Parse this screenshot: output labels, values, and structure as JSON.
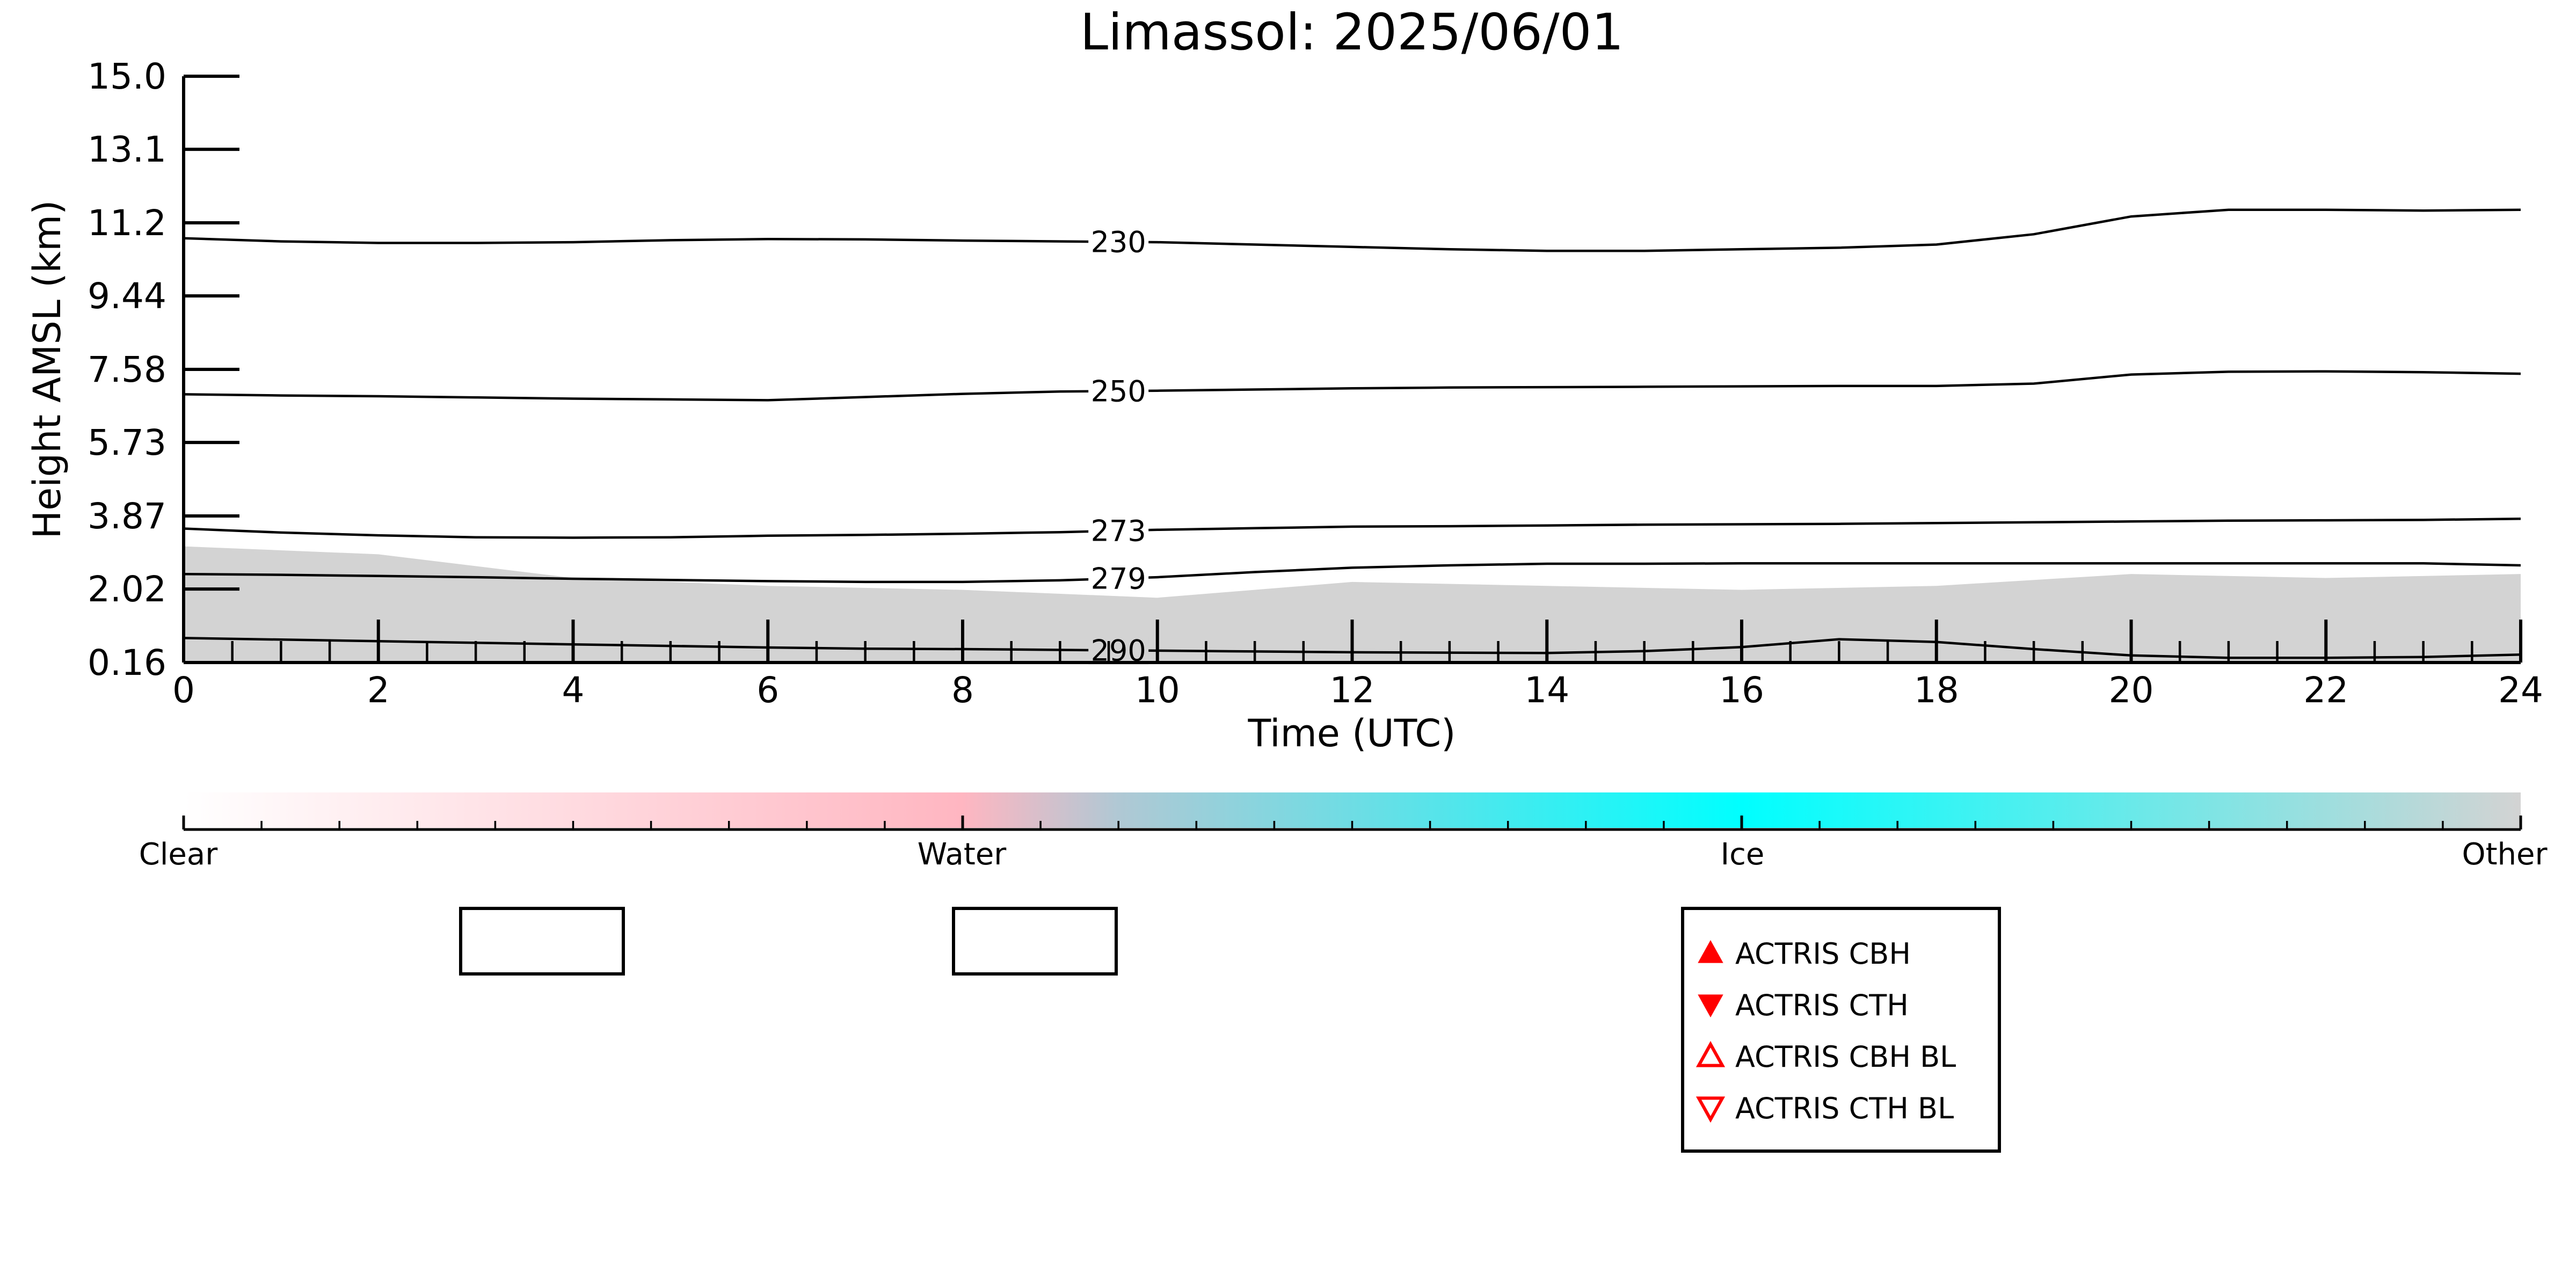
{
  "chart_data": {
    "type": "line",
    "title": "Limassol: 2025/06/01",
    "xlabel": "Time (UTC)",
    "ylabel": "Height AMSL (km)",
    "xlim": [
      0,
      24
    ],
    "ylim": [
      0.16,
      15.0
    ],
    "x_ticks": [
      "0",
      "2",
      "4",
      "6",
      "8",
      "10",
      "12",
      "14",
      "16",
      "18",
      "20",
      "22",
      "24"
    ],
    "y_ticks": [
      "0.16",
      "2.02",
      "3.87",
      "5.73",
      "7.58",
      "9.44",
      "11.2",
      "13.1",
      "15.0"
    ],
    "y_tick_values": [
      0.16,
      2.02,
      3.87,
      5.73,
      7.58,
      9.44,
      11.29,
      13.15,
      15.0
    ],
    "grid": false,
    "background_fill": {
      "color": "#d3d3d3",
      "x": [
        0,
        2,
        4,
        6,
        8,
        10,
        12,
        14,
        16,
        18,
        20,
        22,
        24
      ],
      "top": [
        3.1,
        2.9,
        2.3,
        2.1,
        2.0,
        1.8,
        2.2,
        2.1,
        2.0,
        2.1,
        2.4,
        2.3,
        2.4
      ]
    },
    "series": [
      {
        "label": "230",
        "label_x": 9.6,
        "x": [
          0,
          1,
          2,
          3,
          4,
          5,
          6,
          7,
          8,
          9,
          10,
          11,
          12,
          13,
          14,
          15,
          16,
          17,
          18,
          19,
          20,
          21,
          22,
          23,
          24
        ],
        "y": [
          10.9,
          10.82,
          10.78,
          10.78,
          10.8,
          10.85,
          10.88,
          10.87,
          10.84,
          10.82,
          10.8,
          10.74,
          10.68,
          10.62,
          10.58,
          10.58,
          10.62,
          10.66,
          10.74,
          11.0,
          11.45,
          11.62,
          11.62,
          11.6,
          11.62
        ]
      },
      {
        "label": "250",
        "label_x": 9.6,
        "x": [
          0,
          1,
          2,
          3,
          4,
          5,
          6,
          7,
          8,
          9,
          10,
          11,
          12,
          13,
          14,
          15,
          16,
          17,
          18,
          19,
          20,
          21,
          22,
          23,
          24
        ],
        "y": [
          6.95,
          6.92,
          6.9,
          6.87,
          6.84,
          6.82,
          6.8,
          6.88,
          6.96,
          7.02,
          7.04,
          7.07,
          7.1,
          7.12,
          7.13,
          7.14,
          7.15,
          7.16,
          7.16,
          7.22,
          7.45,
          7.52,
          7.53,
          7.51,
          7.47
        ]
      },
      {
        "label": "273",
        "label_x": 9.6,
        "x": [
          0,
          1,
          2,
          3,
          4,
          5,
          6,
          7,
          8,
          9,
          10,
          11,
          12,
          13,
          14,
          15,
          16,
          17,
          18,
          19,
          20,
          21,
          22,
          23,
          24
        ],
        "y": [
          3.55,
          3.45,
          3.38,
          3.33,
          3.32,
          3.33,
          3.37,
          3.39,
          3.42,
          3.46,
          3.52,
          3.56,
          3.6,
          3.61,
          3.63,
          3.65,
          3.66,
          3.67,
          3.69,
          3.71,
          3.73,
          3.75,
          3.76,
          3.77,
          3.8
        ]
      },
      {
        "label": "279",
        "label_x": 9.6,
        "x": [
          0,
          1,
          2,
          3,
          4,
          5,
          6,
          7,
          8,
          9,
          10,
          11,
          12,
          13,
          14,
          15,
          16,
          17,
          18,
          19,
          20,
          21,
          22,
          23,
          24
        ],
        "y": [
          2.4,
          2.38,
          2.35,
          2.32,
          2.28,
          2.25,
          2.22,
          2.2,
          2.2,
          2.24,
          2.32,
          2.45,
          2.56,
          2.62,
          2.66,
          2.66,
          2.67,
          2.67,
          2.67,
          2.67,
          2.67,
          2.67,
          2.67,
          2.67,
          2.62
        ]
      },
      {
        "label": "290",
        "label_x": 9.6,
        "x": [
          0,
          1,
          2,
          3,
          4,
          5,
          6,
          7,
          8,
          9,
          10,
          11,
          12,
          13,
          14,
          15,
          16,
          17,
          18,
          19,
          20,
          21,
          22,
          23,
          24
        ],
        "y": [
          0.78,
          0.74,
          0.7,
          0.66,
          0.62,
          0.58,
          0.54,
          0.51,
          0.5,
          0.48,
          0.46,
          0.44,
          0.42,
          0.41,
          0.4,
          0.45,
          0.55,
          0.75,
          0.68,
          0.5,
          0.34,
          0.28,
          0.28,
          0.3,
          0.36
        ]
      }
    ],
    "colorbar": {
      "labels": [
        "Clear",
        "Water",
        "Ice",
        "Other"
      ],
      "label_positions": [
        0,
        0.333,
        0.667,
        1
      ],
      "stops": [
        {
          "pos": 0.0,
          "color": "#ffffff"
        },
        {
          "pos": 0.333,
          "color": "#ffb6c1"
        },
        {
          "pos": 0.4,
          "color": "#b0c8d4"
        },
        {
          "pos": 0.667,
          "color": "#00ffff"
        },
        {
          "pos": 1.0,
          "color": "#d3d3d3"
        }
      ]
    },
    "legend": {
      "placement": "bottom-right",
      "entries": [
        {
          "label": "ACTRIS CBH",
          "marker": "triangle-up-filled",
          "color": "#ff0000"
        },
        {
          "label": "ACTRIS CTH",
          "marker": "triangle-down-filled",
          "color": "#ff0000"
        },
        {
          "label": "ACTRIS CBH BL",
          "marker": "triangle-up-open",
          "color": "#ff0000"
        },
        {
          "label": "ACTRIS CTH BL",
          "marker": "triangle-down-open",
          "color": "#ff0000"
        }
      ]
    },
    "empty_legend_boxes": 2
  }
}
